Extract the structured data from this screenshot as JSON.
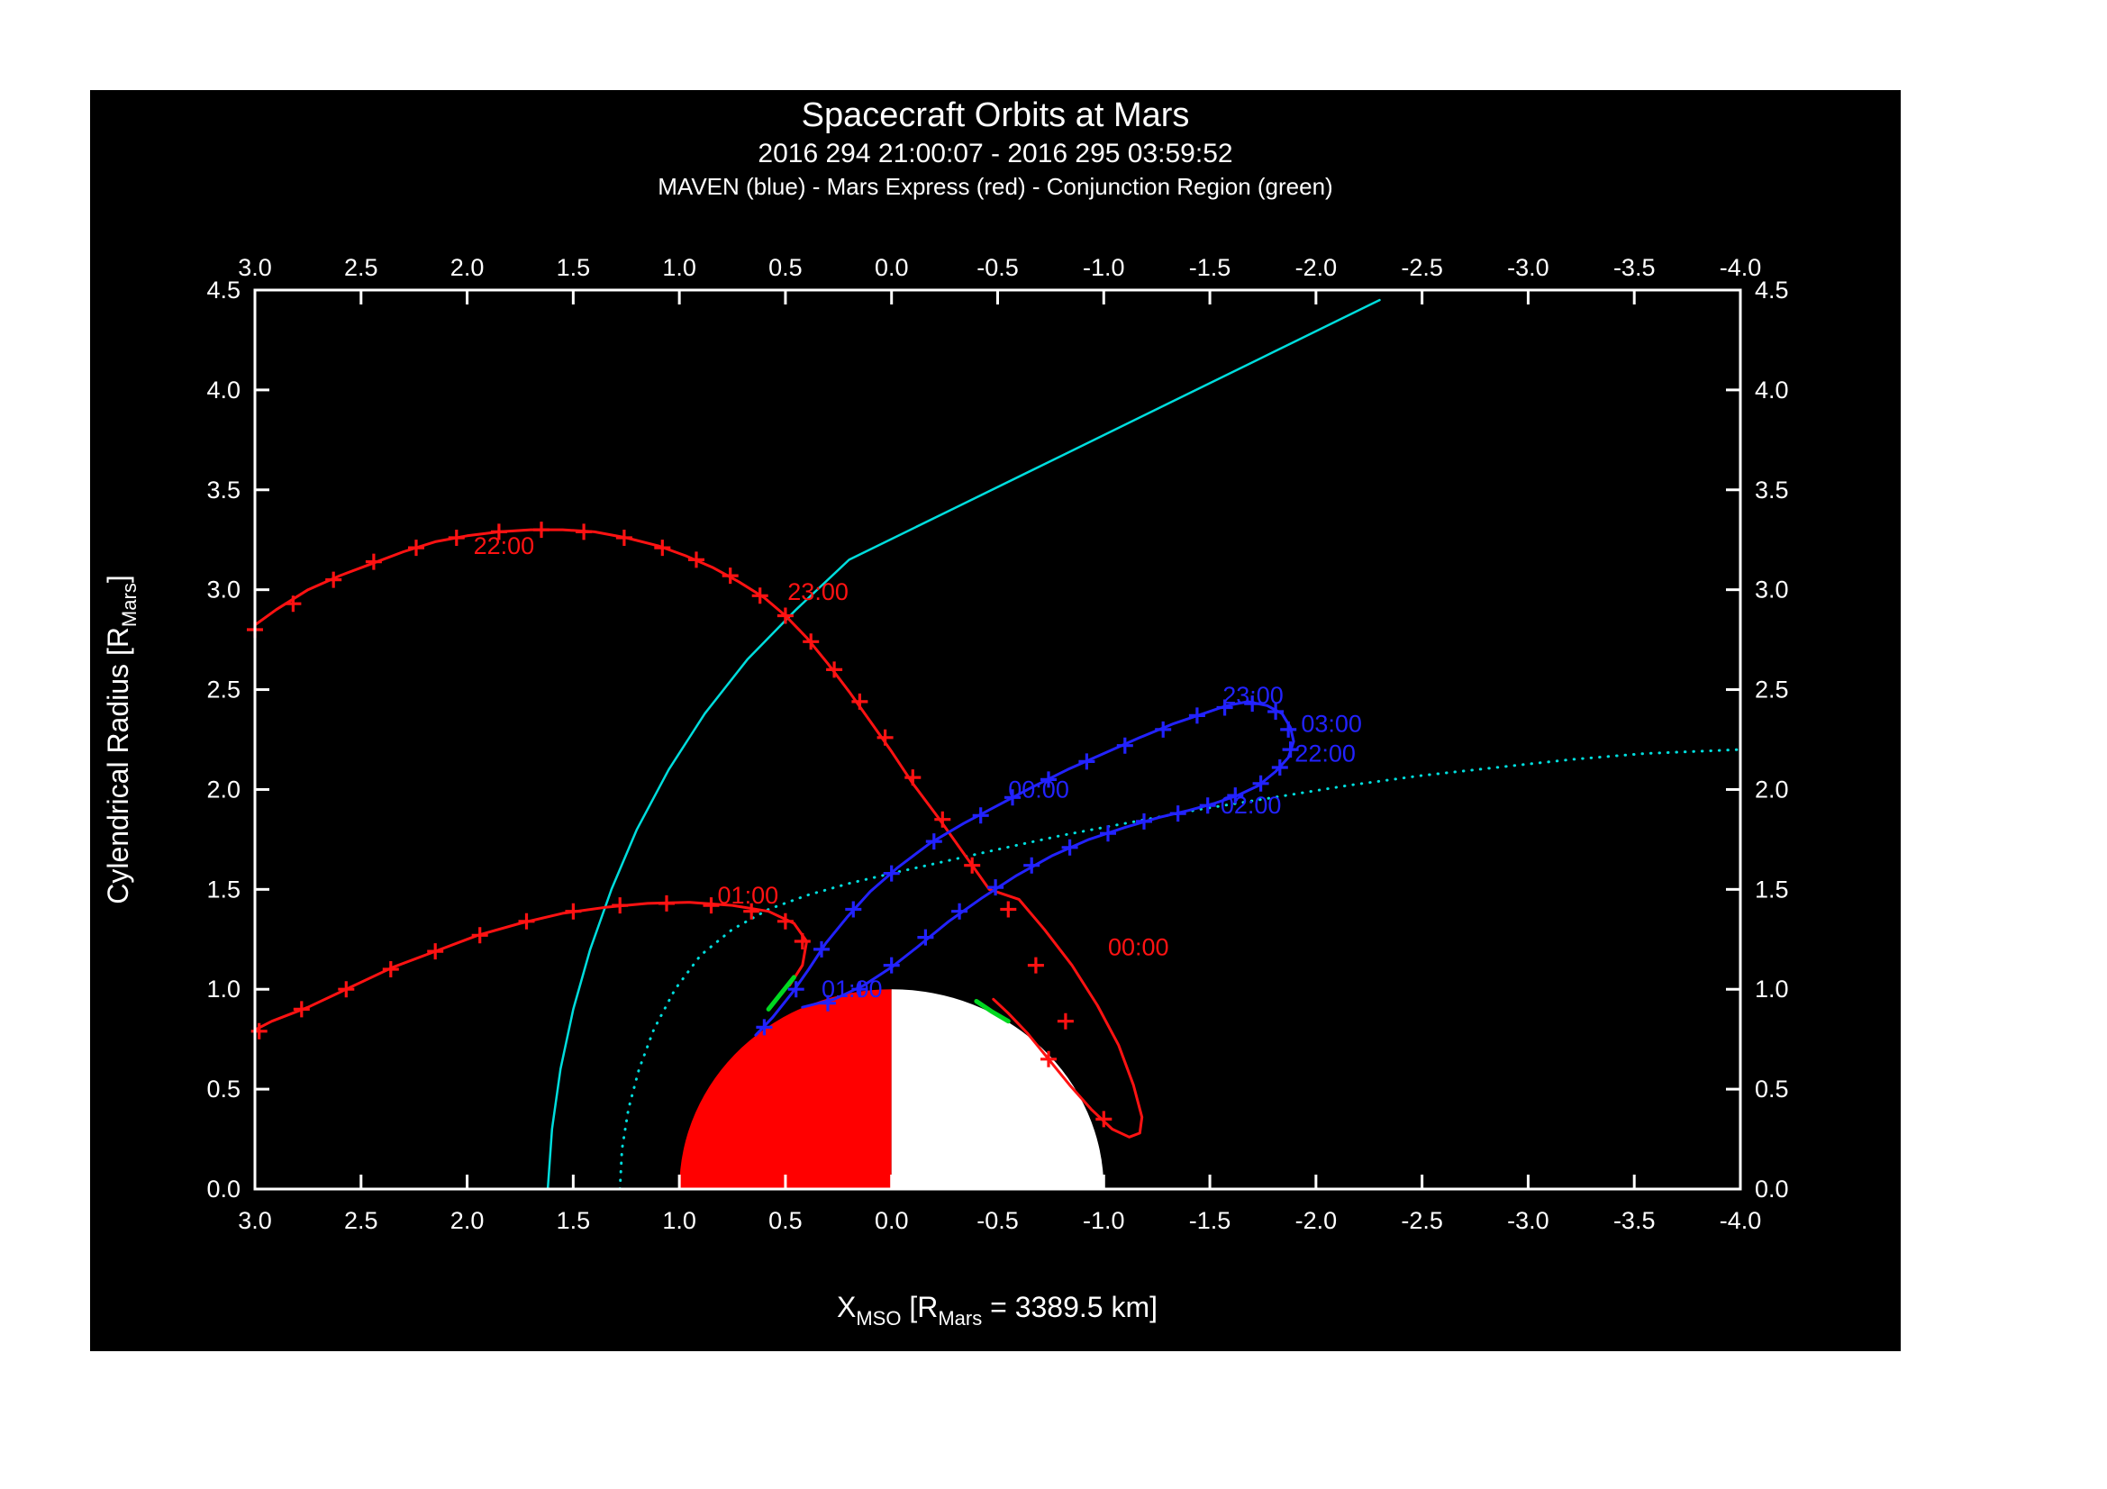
{
  "title": "Spacecraft Orbits at Mars",
  "subtitle": "2016 294 21:00:07 - 2016 295 03:59:52",
  "legend_line": "MAVEN (blue) - Mars Express (red) - Conjunction Region (green)",
  "colors": {
    "background": "#000000",
    "frame": "#ffffff",
    "maven": "#2222ff",
    "mars_express": "#ff1212",
    "conjunction": "#00d820",
    "boundary": "#00dddd",
    "mars_day": "#ff0000",
    "mars_night": "#ffffff"
  },
  "chart_data": {
    "type": "line",
    "title": "Spacecraft Orbits at Mars",
    "xlabel_parts": [
      {
        "t": "X",
        "sub": false
      },
      {
        "t": "MSO",
        "sub": true
      },
      {
        "t": " [R",
        "sub": false
      },
      {
        "t": "Mars",
        "sub": true
      },
      {
        "t": " = 3389.5 km]",
        "sub": false
      }
    ],
    "ylabel_parts": [
      {
        "t": "Cylendrical Radius [R",
        "sub": false
      },
      {
        "t": "Mars",
        "sub": true
      },
      {
        "t": "]",
        "sub": false
      }
    ],
    "xlim": [
      3.0,
      -4.0
    ],
    "ylim": [
      0.0,
      4.5
    ],
    "x_ticks": [
      3.0,
      2.5,
      2.0,
      1.5,
      1.0,
      0.5,
      0.0,
      -0.5,
      -1.0,
      -1.5,
      -2.0,
      -2.5,
      -3.0,
      -3.5,
      -4.0
    ],
    "y_ticks": [
      0.0,
      0.5,
      1.0,
      1.5,
      2.0,
      2.5,
      3.0,
      3.5,
      4.0,
      4.5
    ],
    "grid": false,
    "mars": {
      "center": [
        0,
        0
      ],
      "radius": 1.0,
      "day_color": "#ff0000",
      "night_color": "#ffffff"
    },
    "series": [
      {
        "name": "bow-shock",
        "color": "#00dddd",
        "style": "solid",
        "width": 2.5,
        "paths": [
          [
            [
              1.62,
              0.0
            ],
            [
              1.6,
              0.3
            ],
            [
              1.56,
              0.6
            ],
            [
              1.5,
              0.9
            ],
            [
              1.42,
              1.2
            ],
            [
              1.32,
              1.5
            ],
            [
              1.2,
              1.8
            ],
            [
              1.05,
              2.1
            ],
            [
              0.88,
              2.38
            ],
            [
              0.68,
              2.65
            ],
            [
              0.45,
              2.9
            ],
            [
              0.2,
              3.15
            ],
            [
              -0.3,
              3.41
            ],
            [
              -0.8,
              3.67
            ],
            [
              -1.3,
              3.93
            ],
            [
              -1.8,
              4.19
            ],
            [
              -2.3,
              4.45
            ]
          ]
        ],
        "markers": []
      },
      {
        "name": "magnetopause",
        "color": "#00dddd",
        "style": "dotted",
        "width": 3,
        "paths": [
          [
            [
              1.28,
              0.0
            ],
            [
              1.27,
              0.2
            ],
            [
              1.24,
              0.4
            ],
            [
              1.19,
              0.6
            ],
            [
              1.12,
              0.8
            ],
            [
              1.02,
              1.0
            ],
            [
              0.9,
              1.17
            ],
            [
              0.75,
              1.3
            ],
            [
              0.58,
              1.4
            ],
            [
              0.4,
              1.47
            ],
            [
              0.2,
              1.53
            ],
            [
              0.0,
              1.58
            ],
            [
              -0.25,
              1.64
            ],
            [
              -0.5,
              1.7
            ],
            [
              -0.8,
              1.77
            ],
            [
              -1.1,
              1.83
            ],
            [
              -1.45,
              1.9
            ],
            [
              -1.8,
              1.96
            ],
            [
              -2.15,
              2.02
            ],
            [
              -2.5,
              2.07
            ],
            [
              -2.85,
              2.11
            ],
            [
              -3.2,
              2.15
            ],
            [
              -3.55,
              2.18
            ],
            [
              -4.0,
              2.2
            ]
          ]
        ],
        "markers": []
      },
      {
        "name": "mars-express",
        "color": "#ff1212",
        "style": "solid",
        "width": 3,
        "paths": [
          [
            [
              3.03,
              2.8
            ],
            [
              2.9,
              2.9
            ],
            [
              2.75,
              3.0
            ],
            [
              2.6,
              3.07
            ],
            [
              2.45,
              3.13
            ],
            [
              2.3,
              3.19
            ],
            [
              2.15,
              3.24
            ],
            [
              2.0,
              3.27
            ],
            [
              1.85,
              3.29
            ],
            [
              1.7,
              3.3
            ],
            [
              1.55,
              3.3
            ],
            [
              1.4,
              3.29
            ],
            [
              1.25,
              3.26
            ],
            [
              1.1,
              3.22
            ],
            [
              0.97,
              3.17
            ],
            [
              0.84,
              3.11
            ],
            [
              0.72,
              3.04
            ],
            [
              0.6,
              2.96
            ],
            [
              0.5,
              2.87
            ],
            [
              0.4,
              2.76
            ],
            [
              0.3,
              2.63
            ],
            [
              0.2,
              2.49
            ],
            [
              0.1,
              2.34
            ],
            [
              0.0,
              2.19
            ],
            [
              -0.1,
              2.03
            ],
            [
              -0.22,
              1.86
            ],
            [
              -0.34,
              1.68
            ],
            [
              -0.46,
              1.5
            ],
            [
              -0.6,
              1.45
            ],
            [
              -0.72,
              1.3
            ],
            [
              -0.85,
              1.12
            ],
            [
              -0.97,
              0.92
            ],
            [
              -1.07,
              0.72
            ],
            [
              -1.14,
              0.52
            ],
            [
              -1.18,
              0.36
            ],
            [
              -1.17,
              0.28
            ],
            [
              -1.12,
              0.26
            ],
            [
              -1.04,
              0.3
            ],
            [
              -0.94,
              0.4
            ],
            [
              -0.84,
              0.52
            ],
            [
              -0.74,
              0.65
            ],
            [
              -0.64,
              0.78
            ],
            [
              -0.55,
              0.88
            ],
            [
              -0.48,
              0.95
            ]
          ],
          [
            [
              0.48,
              1.02
            ],
            [
              0.42,
              1.12
            ],
            [
              0.4,
              1.24
            ],
            [
              0.46,
              1.33
            ],
            [
              0.58,
              1.39
            ],
            [
              0.75,
              1.42
            ],
            [
              0.95,
              1.435
            ],
            [
              1.15,
              1.43
            ],
            [
              1.35,
              1.41
            ],
            [
              1.55,
              1.38
            ],
            [
              1.75,
              1.33
            ],
            [
              1.95,
              1.27
            ],
            [
              2.15,
              1.19
            ],
            [
              2.35,
              1.11
            ],
            [
              2.55,
              1.01
            ],
            [
              2.75,
              0.91
            ],
            [
              2.92,
              0.84
            ],
            [
              3.03,
              0.78
            ]
          ]
        ],
        "markers": [
          [
            3.0,
            2.8
          ],
          [
            2.82,
            2.93
          ],
          [
            2.63,
            3.05
          ],
          [
            2.44,
            3.14
          ],
          [
            2.24,
            3.21
          ],
          [
            2.05,
            3.26
          ],
          [
            1.85,
            3.29
          ],
          [
            1.65,
            3.3
          ],
          [
            1.45,
            3.29
          ],
          [
            1.26,
            3.26
          ],
          [
            1.08,
            3.21
          ],
          [
            0.92,
            3.15
          ],
          [
            0.76,
            3.07
          ],
          [
            0.62,
            2.97
          ],
          [
            0.5,
            2.87
          ],
          [
            0.38,
            2.74
          ],
          [
            0.27,
            2.6
          ],
          [
            0.15,
            2.44
          ],
          [
            0.03,
            2.26
          ],
          [
            -0.1,
            2.06
          ],
          [
            -0.24,
            1.85
          ],
          [
            -0.38,
            1.62
          ],
          [
            -0.55,
            1.4
          ],
          [
            -0.68,
            1.12
          ],
          [
            -0.82,
            0.84
          ],
          [
            -1.0,
            0.35
          ],
          [
            -0.74,
            0.65
          ],
          [
            2.98,
            0.79
          ],
          [
            2.78,
            0.9
          ],
          [
            2.57,
            1.0
          ],
          [
            2.36,
            1.1
          ],
          [
            2.15,
            1.19
          ],
          [
            1.94,
            1.27
          ],
          [
            1.72,
            1.34
          ],
          [
            1.5,
            1.39
          ],
          [
            1.28,
            1.42
          ],
          [
            1.06,
            1.43
          ],
          [
            0.85,
            1.42
          ],
          [
            0.66,
            1.39
          ],
          [
            0.5,
            1.34
          ],
          [
            0.42,
            1.24
          ]
        ]
      },
      {
        "name": "maven",
        "color": "#2222ff",
        "style": "solid",
        "width": 3,
        "paths": [
          [
            [
              0.64,
              0.77
            ],
            [
              0.56,
              0.86
            ],
            [
              0.47,
              0.98
            ],
            [
              0.39,
              1.1
            ],
            [
              0.31,
              1.23
            ],
            [
              0.21,
              1.36
            ],
            [
              0.1,
              1.49
            ],
            [
              -0.03,
              1.61
            ],
            [
              -0.18,
              1.73
            ],
            [
              -0.34,
              1.83
            ],
            [
              -0.5,
              1.92
            ],
            [
              -0.66,
              2.01
            ],
            [
              -0.83,
              2.1
            ],
            [
              -1.0,
              2.18
            ],
            [
              -1.17,
              2.26
            ],
            [
              -1.33,
              2.33
            ],
            [
              -1.47,
              2.38
            ],
            [
              -1.58,
              2.42
            ],
            [
              -1.68,
              2.44
            ],
            [
              -1.77,
              2.42
            ],
            [
              -1.84,
              2.38
            ],
            [
              -1.88,
              2.31
            ],
            [
              -1.895,
              2.24
            ],
            [
              -1.87,
              2.16
            ],
            [
              -1.81,
              2.09
            ],
            [
              -1.73,
              2.02
            ],
            [
              -1.63,
              1.97
            ],
            [
              -1.52,
              1.93
            ],
            [
              -1.4,
              1.895
            ],
            [
              -1.26,
              1.86
            ],
            [
              -1.1,
              1.81
            ],
            [
              -0.93,
              1.75
            ],
            [
              -0.76,
              1.67
            ],
            [
              -0.59,
              1.57
            ],
            [
              -0.43,
              1.46
            ],
            [
              -0.27,
              1.34
            ],
            [
              -0.12,
              1.21
            ],
            [
              0.0,
              1.11
            ],
            [
              0.13,
              1.02
            ],
            [
              0.27,
              0.95
            ],
            [
              0.42,
              0.91
            ]
          ]
        ],
        "markers": [
          [
            0.6,
            0.81
          ],
          [
            0.45,
            1.0
          ],
          [
            0.33,
            1.2
          ],
          [
            0.18,
            1.4
          ],
          [
            0.0,
            1.58
          ],
          [
            -0.2,
            1.74
          ],
          [
            -0.42,
            1.87
          ],
          [
            -0.57,
            1.96
          ],
          [
            -0.74,
            2.05
          ],
          [
            -0.92,
            2.14
          ],
          [
            -1.1,
            2.22
          ],
          [
            -1.28,
            2.3
          ],
          [
            -1.44,
            2.37
          ],
          [
            -1.57,
            2.41
          ],
          [
            -1.7,
            2.43
          ],
          [
            -1.81,
            2.39
          ],
          [
            -1.87,
            2.3
          ],
          [
            -1.88,
            2.2
          ],
          [
            -1.83,
            2.11
          ],
          [
            -1.74,
            2.03
          ],
          [
            -1.62,
            1.97
          ],
          [
            -1.49,
            1.92
          ],
          [
            -1.35,
            1.88
          ],
          [
            -1.19,
            1.84
          ],
          [
            -1.02,
            1.78
          ],
          [
            -0.84,
            1.71
          ],
          [
            -0.66,
            1.62
          ],
          [
            -0.49,
            1.51
          ],
          [
            -0.32,
            1.39
          ],
          [
            -0.16,
            1.26
          ],
          [
            0.0,
            1.12
          ],
          [
            0.15,
            1.0
          ],
          [
            0.3,
            0.93
          ]
        ]
      },
      {
        "name": "conjunction-region",
        "color": "#00d820",
        "style": "solid",
        "width": 5,
        "paths": [
          [
            [
              0.58,
              0.9
            ],
            [
              0.52,
              0.98
            ],
            [
              0.46,
              1.06
            ]
          ],
          [
            [
              -0.4,
              0.94
            ],
            [
              -0.47,
              0.89
            ],
            [
              -0.55,
              0.84
            ]
          ]
        ],
        "markers": []
      }
    ],
    "annotations": [
      {
        "text": "22:00",
        "x": 1.97,
        "y": 3.22,
        "color": "#ff1212"
      },
      {
        "text": "23:00",
        "x": 0.49,
        "y": 2.99,
        "color": "#ff1212"
      },
      {
        "text": "00:00",
        "x": -1.02,
        "y": 1.21,
        "color": "#ff1212"
      },
      {
        "text": "01:00",
        "x": 0.82,
        "y": 1.47,
        "color": "#ff1212"
      },
      {
        "text": "01:00",
        "x": 0.33,
        "y": 1.0,
        "color": "#2222ff"
      },
      {
        "text": "00:00",
        "x": -0.55,
        "y": 2.0,
        "color": "#2222ff"
      },
      {
        "text": "23:00",
        "x": -1.56,
        "y": 2.47,
        "color": "#2222ff"
      },
      {
        "text": "03:00",
        "x": -1.93,
        "y": 2.33,
        "color": "#2222ff"
      },
      {
        "text": "22:00",
        "x": -1.9,
        "y": 2.18,
        "color": "#2222ff"
      },
      {
        "text": "02:00",
        "x": -1.55,
        "y": 1.92,
        "color": "#2222ff"
      }
    ]
  }
}
